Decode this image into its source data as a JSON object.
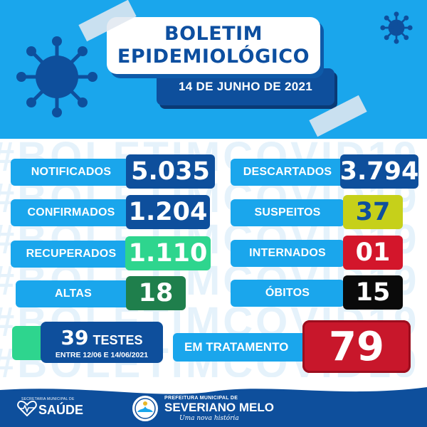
{
  "header": {
    "title_line1": "BOLETIM",
    "title_line2": "EPIDEMIOLÓGICO",
    "date": "14 DE JUNHO DE 2021"
  },
  "watermark": "#BOLETIMCOVID19",
  "stats": [
    {
      "label": "NOTIFICADOS",
      "value": "5.035",
      "color": "#0e4f9c"
    },
    {
      "label": "DESCARTADOS",
      "value": "3.794",
      "color": "#0e4f9c"
    },
    {
      "label": "CONFIRMADOS",
      "value": "1.204",
      "color": "#0e4f9c"
    },
    {
      "label": "SUSPEITOS",
      "value": "37",
      "color": "#c6d01a"
    },
    {
      "label": "RECUPERADOS",
      "value": "1.110",
      "color": "#2ed58e"
    },
    {
      "label": "INTERNADOS",
      "value": "01",
      "color": "#d3162b"
    },
    {
      "label": "ALTAS",
      "value": "18",
      "color": "#1f7f4c"
    },
    {
      "label": "ÓBITOS",
      "value": "15",
      "color": "#0a0a0a"
    }
  ],
  "testes": {
    "count": "39",
    "label": "TESTES",
    "period": "ENTRE 12/06 E 14/06/2021"
  },
  "tratamento": {
    "label": "EM TRATAMENTO",
    "value": "79"
  },
  "footer": {
    "saude_top": "SECRETARIA MUNICIPAL DE",
    "saude_name": "SAÚDE",
    "prefeitura_top": "PREFEITURA MUNICIPAL DE",
    "prefeitura_name": "SEVERIANO MELO",
    "slogan": "Uma nova história"
  }
}
